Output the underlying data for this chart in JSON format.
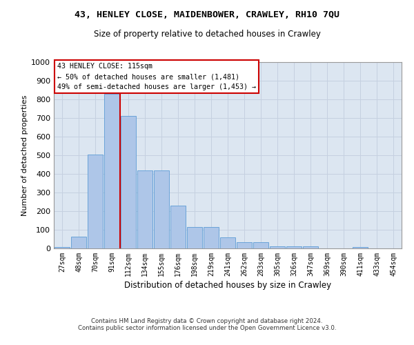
{
  "title1": "43, HENLEY CLOSE, MAIDENBOWER, CRAWLEY, RH10 7QU",
  "title2": "Size of property relative to detached houses in Crawley",
  "xlabel": "Distribution of detached houses by size in Crawley",
  "ylabel": "Number of detached properties",
  "bin_labels": [
    "27sqm",
    "48sqm",
    "70sqm",
    "91sqm",
    "112sqm",
    "134sqm",
    "155sqm",
    "176sqm",
    "198sqm",
    "219sqm",
    "241sqm",
    "262sqm",
    "283sqm",
    "305sqm",
    "326sqm",
    "347sqm",
    "369sqm",
    "390sqm",
    "411sqm",
    "433sqm",
    "454sqm"
  ],
  "bar_heights": [
    8,
    62,
    505,
    828,
    712,
    418,
    418,
    230,
    115,
    115,
    60,
    35,
    35,
    12,
    10,
    10,
    0,
    0,
    8,
    0,
    0
  ],
  "bar_color": "#aec6e8",
  "bar_edge_color": "#5b9bd5",
  "vline_x": 3.5,
  "vline_color": "#cc0000",
  "annotation_title": "43 HENLEY CLOSE: 115sqm",
  "annotation_line1": "← 50% of detached houses are smaller (1,481)",
  "annotation_line2": "49% of semi-detached houses are larger (1,453) →",
  "annotation_box_facecolor": "#ffffff",
  "annotation_box_edgecolor": "#cc0000",
  "ylim": [
    0,
    1000
  ],
  "yticks": [
    0,
    100,
    200,
    300,
    400,
    500,
    600,
    700,
    800,
    900,
    1000
  ],
  "bg_color": "#dce6f1",
  "grid_color": "#c5d0e0",
  "footer1": "Contains HM Land Registry data © Crown copyright and database right 2024.",
  "footer2": "Contains public sector information licensed under the Open Government Licence v3.0."
}
